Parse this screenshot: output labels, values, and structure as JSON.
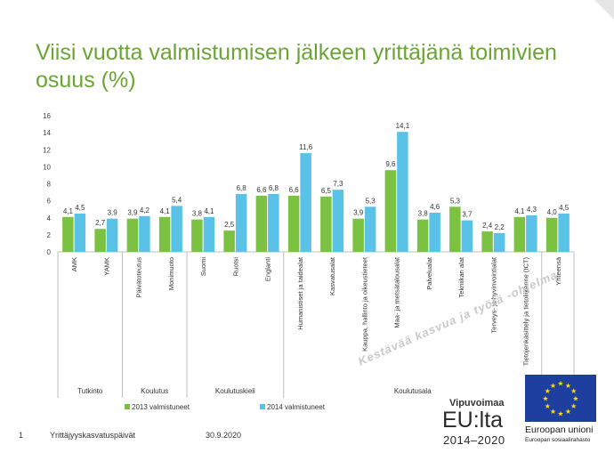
{
  "slide": {
    "title": "Viisi vuotta valmistumisen jälkeen yrittäjänä toimivien osuus (%)",
    "footer_page": "1",
    "footer_event": "Yrittäjyyskasvatuspäivät",
    "footer_date": "30.9.2020",
    "watermark": "Kestävää kasvua ja työtä -ohjelma"
  },
  "logos": {
    "vipuvoimaa_name": "Vipuvoimaa",
    "vipuvoimaa_eu": "EU:lta",
    "vipuvoimaa_years": "2014–2020",
    "eu_name": "Euroopan unioni",
    "eu_fund": "Euroopan sosiaalirahasto"
  },
  "colors": {
    "title_green": "#6aa534",
    "series_2013": "#7cc242",
    "series_2014": "#5bc2e7",
    "eu_blue": "#1f3fa0",
    "eu_star": "#ffdd00"
  },
  "chart_data": {
    "type": "bar",
    "ylim": [
      0,
      16
    ],
    "yticks": [
      0,
      2,
      4,
      6,
      8,
      10,
      12,
      14,
      16
    ],
    "categories": [
      "AMK",
      "YAMK",
      "Päivätoteutus",
      "Monimuoto",
      "Suomi",
      "Ruotsi",
      "Englanti",
      "Humanistiset ja taidealat",
      "Kasvatusalat",
      "Kauppa, hallinto ja oikeustieteet",
      "Maa- ja metsätalousalat",
      "Palvelualat",
      "Tekniikan alat",
      "Terveys- ja hyvinvointialat",
      "Tietojenkäsittely ja tietoliikenne (ICT)",
      "Yhteensä"
    ],
    "groups": [
      {
        "label": "Tutkinto",
        "count": 2
      },
      {
        "label": "Koulutus",
        "count": 2
      },
      {
        "label": "Koulutuskieli",
        "count": 3
      },
      {
        "label": "Koulutusala",
        "count": 8
      },
      {
        "label": "",
        "count": 1
      }
    ],
    "series": [
      {
        "name": "2013 valmistuneet",
        "values": [
          4.1,
          2.7,
          3.9,
          4.1,
          3.8,
          2.5,
          6.6,
          6.6,
          6.5,
          3.9,
          9.6,
          3.8,
          5.3,
          2.4,
          4.1,
          4.0
        ],
        "labels": [
          "4,1",
          "2,7",
          "3,9",
          "4,1",
          "3,8",
          "2,5",
          "6,6",
          "6,6",
          "6,5",
          "3,9",
          "9,6",
          "3,8",
          "5,3",
          "2,4",
          "4,1",
          "4,0"
        ]
      },
      {
        "name": "2014 valmistuneet",
        "values": [
          4.5,
          3.9,
          4.2,
          5.4,
          4.1,
          6.8,
          6.8,
          11.6,
          7.3,
          5.3,
          14.1,
          4.6,
          3.7,
          2.2,
          4.3,
          4.5
        ],
        "labels": [
          "4,5",
          "3,9",
          "4,2",
          "5,4",
          "4,1",
          "6,8",
          "6,8",
          "11,6",
          "7,3",
          "5,3",
          "14,1",
          "4,6",
          "3,7",
          "2,2",
          "4,3",
          "4,5"
        ]
      }
    ],
    "legend_position": "bottom"
  }
}
